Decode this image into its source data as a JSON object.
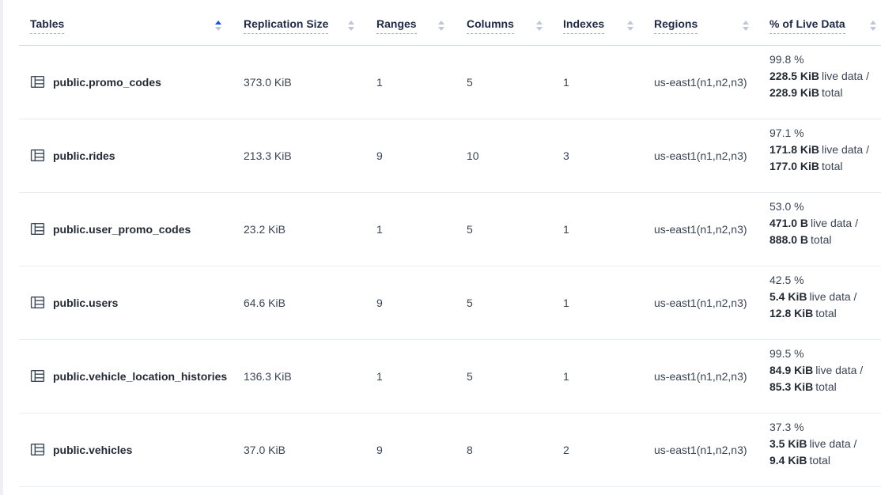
{
  "colors": {
    "sort_active": "#0055FF",
    "sort_inactive": "#C0C6D9",
    "header_text": "#1F2A48",
    "body_text": "#394455",
    "row_border": "#E7ECF3"
  },
  "table": {
    "columns": [
      {
        "label": "Tables",
        "sort": "asc"
      },
      {
        "label": "Replication Size",
        "sort": "none"
      },
      {
        "label": "Ranges",
        "sort": "none"
      },
      {
        "label": "Columns",
        "sort": "none"
      },
      {
        "label": "Indexes",
        "sort": "none"
      },
      {
        "label": "Regions",
        "sort": "none"
      },
      {
        "label": "% of Live Data",
        "sort": "none"
      }
    ],
    "rows": [
      {
        "name": "public.promo_codes",
        "replication_size": "373.0 KiB",
        "ranges": "1",
        "columns": "5",
        "indexes": "1",
        "regions": "us-east1(n1,n2,n3)",
        "live_pct": "99.8 %",
        "live_size": "228.5 KiB",
        "live_label": "live data /",
        "total_size": "228.9 KiB",
        "total_label": "total"
      },
      {
        "name": "public.rides",
        "replication_size": "213.3 KiB",
        "ranges": "9",
        "columns": "10",
        "indexes": "3",
        "regions": "us-east1(n1,n2,n3)",
        "live_pct": "97.1 %",
        "live_size": "171.8 KiB",
        "live_label": "live data /",
        "total_size": "177.0 KiB",
        "total_label": "total"
      },
      {
        "name": "public.user_promo_codes",
        "replication_size": "23.2 KiB",
        "ranges": "1",
        "columns": "5",
        "indexes": "1",
        "regions": "us-east1(n1,n2,n3)",
        "live_pct": "53.0 %",
        "live_size": "471.0 B",
        "live_label": "live data /",
        "total_size": "888.0 B",
        "total_label": "total"
      },
      {
        "name": "public.users",
        "replication_size": "64.6 KiB",
        "ranges": "9",
        "columns": "5",
        "indexes": "1",
        "regions": "us-east1(n1,n2,n3)",
        "live_pct": "42.5 %",
        "live_size": "5.4 KiB",
        "live_label": "live data /",
        "total_size": "12.8 KiB",
        "total_label": "total"
      },
      {
        "name": "public.vehicle_location_histories",
        "replication_size": "136.3 KiB",
        "ranges": "1",
        "columns": "5",
        "indexes": "1",
        "regions": "us-east1(n1,n2,n3)",
        "live_pct": "99.5 %",
        "live_size": "84.9 KiB",
        "live_label": "live data /",
        "total_size": "85.3 KiB",
        "total_label": "total"
      },
      {
        "name": "public.vehicles",
        "replication_size": "37.0 KiB",
        "ranges": "9",
        "columns": "8",
        "indexes": "2",
        "regions": "us-east1(n1,n2,n3)",
        "live_pct": "37.3 %",
        "live_size": "3.5 KiB",
        "live_label": "live data /",
        "total_size": "9.4 KiB",
        "total_label": "total"
      }
    ]
  }
}
